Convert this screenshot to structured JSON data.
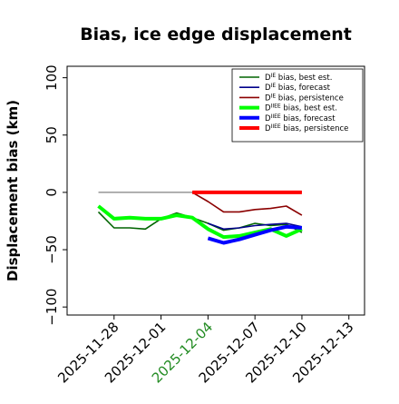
{
  "chart_data": {
    "type": "line",
    "title": "Bias, ice edge displacement",
    "xlabel": "",
    "ylabel": "Displacement bias (km)",
    "xlim": [
      "2025-11-25",
      "2025-12-14"
    ],
    "ylim": [
      -107,
      110
    ],
    "x_ticks": [
      {
        "label": "2025-11-28",
        "date": "2025-11-28",
        "color": "#000000"
      },
      {
        "label": "2025-12-01",
        "date": "2025-12-01",
        "color": "#000000"
      },
      {
        "label": "2025-12-04",
        "date": "2025-12-04",
        "color": "#228b22"
      },
      {
        "label": "2025-12-07",
        "date": "2025-12-07",
        "color": "#000000"
      },
      {
        "label": "2025-12-10",
        "date": "2025-12-10",
        "color": "#000000"
      },
      {
        "label": "2025-12-13",
        "date": "2025-12-13",
        "color": "#000000"
      }
    ],
    "y_ticks": [
      {
        "label": "100",
        "value": 100
      },
      {
        "label": "50",
        "value": 50
      },
      {
        "label": "0",
        "value": 0
      },
      {
        "label": "−50",
        "value": -50
      },
      {
        "label": "−100",
        "value": -100
      }
    ],
    "grid": false,
    "legend_position": "top-right",
    "reference_line": {
      "value": 0,
      "from": "2025-11-27",
      "to": "2025-12-10",
      "color": "#808080"
    },
    "series": [
      {
        "name": "D^IE bias, best est.",
        "label_base": "D",
        "label_sup": "IE",
        "label_rest": " bias, best est.",
        "color": "#006400",
        "width": 1.6,
        "x": [
          "2025-11-27",
          "2025-11-28",
          "2025-11-29",
          "2025-11-30",
          "2025-12-01",
          "2025-12-02",
          "2025-12-03",
          "2025-12-04",
          "2025-12-05",
          "2025-12-06",
          "2025-12-07",
          "2025-12-08",
          "2025-12-09",
          "2025-12-10"
        ],
        "values": [
          -17,
          -31,
          -31,
          -32,
          -23,
          -18,
          -22,
          -27,
          -33,
          -31,
          -27,
          -29,
          -28,
          -35
        ]
      },
      {
        "name": "D^IE bias, forecast",
        "label_base": "D",
        "label_sup": "IE",
        "label_rest": " bias, forecast",
        "color": "#00008b",
        "width": 1.6,
        "x": [
          "2025-12-04",
          "2025-12-05",
          "2025-12-06",
          "2025-12-07",
          "2025-12-08",
          "2025-12-09",
          "2025-12-10"
        ],
        "values": [
          -27,
          -32,
          -31,
          -29,
          -28,
          -27,
          -30
        ]
      },
      {
        "name": "D^IE bias, persistence",
        "label_base": "D",
        "label_sup": "IE",
        "label_rest": " bias, persistence",
        "color": "#8b0000",
        "width": 1.6,
        "x": [
          "2025-12-03",
          "2025-12-04",
          "2025-12-05",
          "2025-12-06",
          "2025-12-07",
          "2025-12-08",
          "2025-12-09",
          "2025-12-10"
        ],
        "values": [
          0,
          -8,
          -17,
          -17,
          -15,
          -14,
          -12,
          -20
        ]
      },
      {
        "name": "D^IIEE bias, best est.",
        "label_base": "D",
        "label_sup": "IIEE",
        "label_rest": " bias, best est.",
        "color": "#00ff00",
        "width": 4,
        "x": [
          "2025-11-27",
          "2025-11-28",
          "2025-11-29",
          "2025-11-30",
          "2025-12-01",
          "2025-12-02",
          "2025-12-03",
          "2025-12-04",
          "2025-12-05",
          "2025-12-06",
          "2025-12-07",
          "2025-12-08",
          "2025-12-09",
          "2025-12-10"
        ],
        "values": [
          -12,
          -23,
          -22,
          -23,
          -23,
          -20,
          -22,
          -32,
          -39,
          -38,
          -35,
          -32,
          -38,
          -32
        ]
      },
      {
        "name": "D^IIEE bias, forecast",
        "label_base": "D",
        "label_sup": "IIEE",
        "label_rest": " bias, forecast",
        "color": "#0000ff",
        "width": 4,
        "x": [
          "2025-12-04",
          "2025-12-05",
          "2025-12-06",
          "2025-12-07",
          "2025-12-08",
          "2025-12-09",
          "2025-12-10"
        ],
        "values": [
          -40,
          -44,
          -41,
          -37,
          -33,
          -30,
          -31
        ]
      },
      {
        "name": "D^IIEE bias, persistence",
        "label_base": "D",
        "label_sup": "IIEE",
        "label_rest": " bias, persistence",
        "color": "#ff0000",
        "width": 4,
        "x": [
          "2025-12-03",
          "2025-12-04",
          "2025-12-05",
          "2025-12-06",
          "2025-12-07",
          "2025-12-08",
          "2025-12-09",
          "2025-12-10"
        ],
        "values": [
          0,
          0,
          0,
          0,
          0,
          0,
          0,
          0
        ]
      }
    ]
  }
}
